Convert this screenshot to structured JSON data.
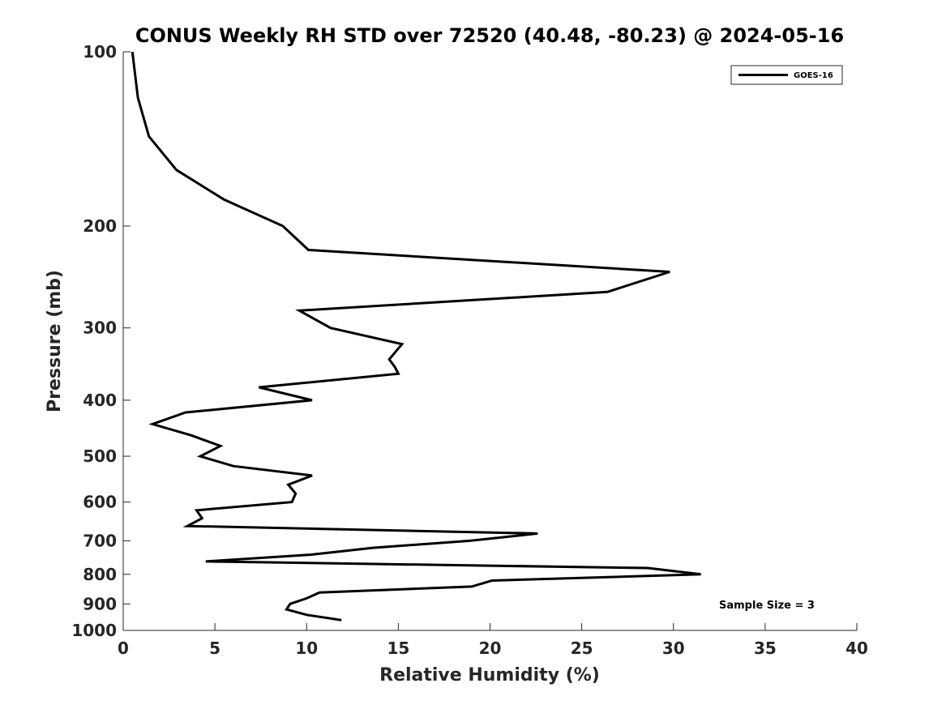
{
  "chart_data": {
    "type": "line",
    "title": "CONUS Weekly RH STD over 72520 (40.48, -80.23) @ 2024-05-16",
    "xlabel": "Relative Humidity (%)",
    "ylabel": "Pressure (mb)",
    "xlim": [
      0,
      40
    ],
    "ylim": [
      100,
      1000
    ],
    "yscale": "log",
    "y_reversed": true,
    "xticks": [
      0,
      5,
      10,
      15,
      20,
      25,
      30,
      35,
      40
    ],
    "yticks": [
      100,
      200,
      300,
      400,
      500,
      600,
      700,
      800,
      900,
      1000
    ],
    "grid": false,
    "legend_position": "top-right",
    "annotation": "Sample Size = 3",
    "series": [
      {
        "name": "GOES-16",
        "color": "#000000",
        "x": [
          0.5,
          0.8,
          1.4,
          2.9,
          5.5,
          8.7,
          10.1,
          29.8,
          26.4,
          9.6,
          11.3,
          15.2,
          14.5,
          14.8,
          15.0,
          7.4,
          10.3,
          3.4,
          1.6,
          3.7,
          5.3,
          4.2,
          6.0,
          10.3,
          9.0,
          9.4,
          9.2,
          4.0,
          4.3,
          3.5,
          22.6,
          18.9,
          13.6,
          10.2,
          4.5,
          28.6,
          31.5,
          20.1,
          19.0,
          10.7,
          10.0,
          9.1,
          8.9,
          10.0,
          11.9
        ],
        "y": [
          100,
          120,
          140,
          160,
          180,
          200,
          220,
          240,
          260,
          280,
          300,
          320,
          340,
          350,
          360,
          380,
          400,
          420,
          440,
          460,
          480,
          500,
          520,
          540,
          560,
          580,
          600,
          620,
          640,
          660,
          680,
          700,
          720,
          740,
          760,
          780,
          800,
          820,
          840,
          860,
          880,
          900,
          920,
          940,
          960
        ]
      }
    ]
  }
}
